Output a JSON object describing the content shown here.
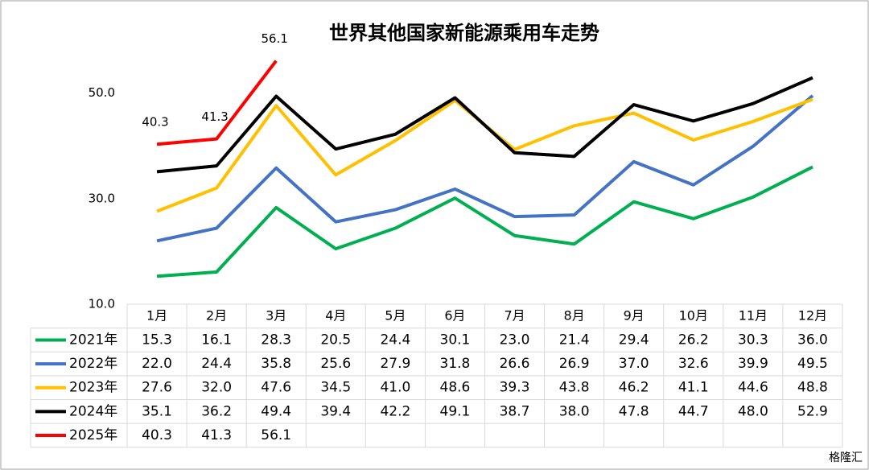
{
  "chart_data": {
    "type": "line",
    "title": "世界其他国家新能源乘用车走势",
    "categories": [
      "1月",
      "2月",
      "3月",
      "4月",
      "5月",
      "6月",
      "7月",
      "8月",
      "9月",
      "10月",
      "11月",
      "12月"
    ],
    "ylim": [
      10,
      60
    ],
    "yticks": [
      {
        "value": 10,
        "label": "10.0"
      },
      {
        "value": 30,
        "label": "30.0"
      },
      {
        "value": 50,
        "label": "50.0"
      }
    ],
    "grid": false,
    "data_labels_series": [
      4
    ],
    "watermark": "格隆汇",
    "series": [
      {
        "name": "2021年",
        "color": "#00b050",
        "values": [
          15.3,
          16.1,
          28.3,
          20.5,
          24.4,
          30.1,
          23.0,
          21.4,
          29.4,
          26.2,
          30.3,
          36.0
        ],
        "value_labels": [
          "15.3",
          "16.1",
          "28.3",
          "20.5",
          "24.4",
          "30.1",
          "23.0",
          "21.4",
          "29.4",
          "26.2",
          "30.3",
          "36.0"
        ]
      },
      {
        "name": "2022年",
        "color": "#4472c4",
        "values": [
          22.0,
          24.4,
          35.8,
          25.6,
          27.9,
          31.8,
          26.6,
          26.9,
          37.0,
          32.6,
          39.9,
          49.5
        ],
        "value_labels": [
          "22.0",
          "24.4",
          "35.8",
          "25.6",
          "27.9",
          "31.8",
          "26.6",
          "26.9",
          "37.0",
          "32.6",
          "39.9",
          "49.5"
        ]
      },
      {
        "name": "2023年",
        "color": "#ffc000",
        "values": [
          27.6,
          32.0,
          47.6,
          34.5,
          41.0,
          48.6,
          39.3,
          43.8,
          46.2,
          41.1,
          44.6,
          48.8
        ],
        "value_labels": [
          "27.6",
          "32.0",
          "47.6",
          "34.5",
          "41.0",
          "48.6",
          "39.3",
          "43.8",
          "46.2",
          "41.1",
          "44.6",
          "48.8"
        ]
      },
      {
        "name": "2024年",
        "color": "#000000",
        "values": [
          35.1,
          36.2,
          49.4,
          39.4,
          42.2,
          49.1,
          38.7,
          38.0,
          47.8,
          44.7,
          48.0,
          52.9
        ],
        "value_labels": [
          "35.1",
          "36.2",
          "49.4",
          "39.4",
          "42.2",
          "49.1",
          "38.7",
          "38.0",
          "47.8",
          "44.7",
          "48.0",
          "52.9"
        ]
      },
      {
        "name": "2025年",
        "color": "#ff0000",
        "values": [
          40.3,
          41.3,
          56.1,
          null,
          null,
          null,
          null,
          null,
          null,
          null,
          null,
          null
        ],
        "value_labels": [
          "40.3",
          "41.3",
          "56.1",
          null,
          null,
          null,
          null,
          null,
          null,
          null,
          null,
          null
        ]
      }
    ]
  }
}
